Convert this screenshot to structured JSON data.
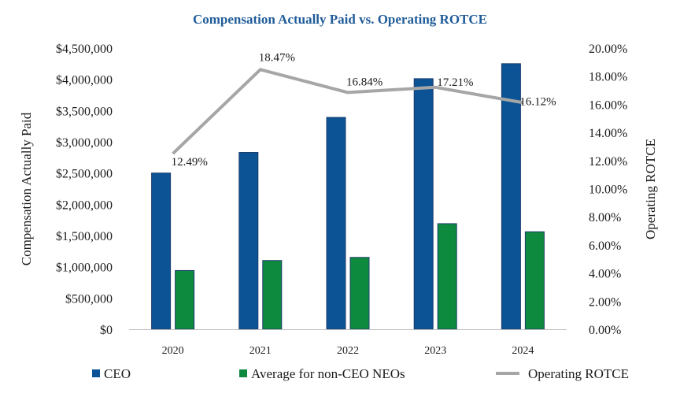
{
  "chart_data": {
    "type": "bar+line",
    "title": "Compensation Actually Paid vs. Operating ROTCE",
    "categories": [
      "2020",
      "2021",
      "2022",
      "2023",
      "2024"
    ],
    "series": [
      {
        "name": "CEO",
        "kind": "bar",
        "axis": "left",
        "color": "#0b5394",
        "values": [
          2500000,
          2830000,
          3390000,
          4010000,
          4250000
        ]
      },
      {
        "name": "Average for non-CEO NEOs",
        "kind": "bar",
        "axis": "left",
        "color": "#0e8a3e",
        "values": [
          940000,
          1100000,
          1150000,
          1690000,
          1560000
        ]
      },
      {
        "name": "Operating ROTCE",
        "kind": "line",
        "axis": "right",
        "color": "#a6a6a6",
        "values": [
          12.49,
          18.47,
          16.84,
          17.21,
          16.12
        ],
        "data_labels": [
          "12.49%",
          "18.47%",
          "16.84%",
          "17.21%",
          "16.12%"
        ]
      }
    ],
    "ylabel": "Compensation Actually Paid",
    "y2label": "Operating ROTCE",
    "ylim": [
      0,
      4500000
    ],
    "y2lim": [
      0,
      20
    ],
    "yticks": [
      "$0",
      "$500,000",
      "$1,000,000",
      "$1,500,000",
      "$2,000,000",
      "$2,500,000",
      "$3,000,000",
      "$3,500,000",
      "$4,000,000",
      "$4,500,000"
    ],
    "y2ticks": [
      "0.00%",
      "2.00%",
      "4.00%",
      "6.00%",
      "8.00%",
      "10.00%",
      "12.00%",
      "14.00%",
      "16.00%",
      "18.00%",
      "20.00%"
    ],
    "legend_position": "bottom",
    "grid": false,
    "title_color": "#1f5c99"
  }
}
